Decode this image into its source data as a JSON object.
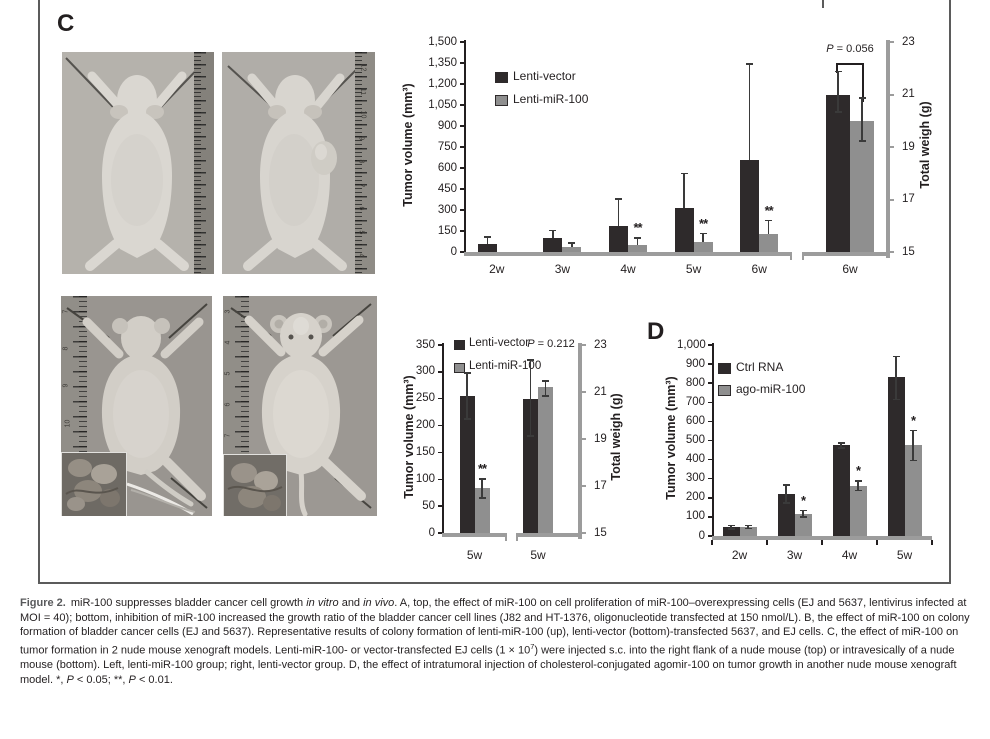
{
  "panels": {
    "c": "C",
    "d": "D"
  },
  "colors": {
    "series_dark": "#2e2a2b",
    "series_gray": "#8f8f8f",
    "axis_black": "#231f20",
    "axis_gray": "#9c9c9c",
    "error_bar": "#3a3a3a",
    "text": "#231f20",
    "caption_label": "#58595b"
  },
  "photos": [
    {
      "position": "top-left",
      "view": "dorsal",
      "ruler_side": "right",
      "ruler_numbers": [],
      "has_inset": false
    },
    {
      "position": "top-right",
      "view": "dorsal",
      "ruler_side": "right",
      "ruler_numbers": [
        "12",
        "11",
        "10",
        "9",
        "8",
        "7",
        "6",
        "5",
        "4"
      ],
      "has_inset": false
    },
    {
      "position": "bottom-left",
      "view": "ventral",
      "ruler_side": "left",
      "ruler_numbers": [
        "7",
        "8",
        "9",
        "10",
        "11",
        "12"
      ],
      "has_inset": true
    },
    {
      "position": "bottom-right",
      "view": "ventral",
      "ruler_side": "left",
      "ruler_numbers": [
        "3",
        "4",
        "5",
        "6",
        "7",
        "8",
        "9"
      ],
      "has_inset": true
    }
  ],
  "chart_data": [
    {
      "type": "bar",
      "ylabel_left": "Tumor volume (mm³)",
      "ylabel_right": "Total weigh (g)",
      "y_left_max": 1500,
      "y_left_ticks": [
        "1,500",
        "1,350",
        "1,200",
        "1,050",
        "900",
        "750",
        "600",
        "450",
        "300",
        "150",
        "0"
      ],
      "y_right_range": [
        15,
        23
      ],
      "y_right_ticks": [
        "23",
        "21",
        "19",
        "17",
        "15"
      ],
      "categories": [
        "2w",
        "3w",
        "4w",
        "5w",
        "6w"
      ],
      "weight_category": "6w",
      "legend": [
        "Lenti-vector",
        "Lenti-miR-100"
      ],
      "p_label": "P",
      "p_rest": " = 0.056",
      "series": [
        {
          "name": "Lenti-vector",
          "color": "#2e2a2b",
          "values": [
            60,
            100,
            185,
            315,
            660
          ],
          "err_hi": [
            113,
            160,
            385,
            565,
            1350
          ],
          "err_lo": null,
          "sig": null
        },
        {
          "name": "Lenti-miR-100",
          "color": "#8f8f8f",
          "values": [
            0,
            38,
            50,
            70,
            130
          ],
          "err_hi": [
            0,
            68,
            105,
            138,
            232
          ],
          "err_lo": null,
          "sig": [
            "",
            "",
            "**",
            "**",
            "**"
          ]
        }
      ],
      "weight_series": [
        {
          "name": "Lenti-vector",
          "value": 21.0,
          "err_hi": 21.9,
          "err_lo": 20.3
        },
        {
          "name": "Lenti-miR-100",
          "value": 20.0,
          "err_hi": 20.9,
          "err_lo": 19.2
        }
      ]
    },
    {
      "type": "bar",
      "ylabel_left": "Tumor volume (mm³)",
      "ylabel_right": "Total weigh (g)",
      "y_left_max": 350,
      "y_left_ticks": [
        "350",
        "300",
        "250",
        "200",
        "150",
        "100",
        "50",
        "0"
      ],
      "y_right_range": [
        15,
        23
      ],
      "y_right_ticks": [
        "23",
        "21",
        "19",
        "17",
        "15"
      ],
      "categories": [
        "5w"
      ],
      "weight_category": "5w",
      "legend": [
        "Lenti-vector",
        "Lenti-miR-100"
      ],
      "p_label": "P",
      "p_rest": " = 0.212",
      "series": [
        {
          "name": "Lenti-vector",
          "color": "#2e2a2b",
          "values": [
            255
          ],
          "err_hi": [
            299
          ],
          "err_lo": [
            211
          ],
          "sig": null
        },
        {
          "name": "Lenti-miR-100",
          "color": "#8f8f8f",
          "values": [
            83
          ],
          "err_hi": [
            102
          ],
          "err_lo": [
            64
          ],
          "sig": [
            "**"
          ]
        }
      ],
      "weight_series": [
        {
          "name": "Lenti-vector",
          "value": 20.7,
          "err_hi": 22.4,
          "err_lo": 19.1
        },
        {
          "name": "Lenti-miR-100",
          "value": 21.2,
          "err_hi": 21.5,
          "err_lo": 20.8
        }
      ]
    },
    {
      "type": "bar",
      "ylabel_left": "Tumor volume (mm³)",
      "y_left_max": 1000,
      "y_left_ticks": [
        "1,000",
        "900",
        "800",
        "700",
        "600",
        "500",
        "400",
        "300",
        "200",
        "100",
        "0"
      ],
      "categories": [
        "2w",
        "3w",
        "4w",
        "5w"
      ],
      "legend": [
        "Ctrl RNA",
        "ago-miR-100"
      ],
      "series": [
        {
          "name": "Ctrl RNA",
          "color": "#2e2a2b",
          "values": [
            45,
            220,
            475,
            830
          ],
          "err_hi": [
            60,
            270,
            492,
            945
          ],
          "err_lo": [
            32,
            170,
            458,
            712
          ],
          "sig": null
        },
        {
          "name": "ago-miR-100",
          "color": "#8f8f8f",
          "values": [
            48,
            115,
            262,
            478
          ],
          "err_hi": [
            60,
            137,
            291,
            557
          ],
          "err_lo": [
            36,
            95,
            234,
            392
          ],
          "sig": [
            "",
            "*",
            "*",
            "*"
          ]
        }
      ]
    }
  ],
  "caption": {
    "label": "Figure 2.",
    "seg_intro": "miR-100 suppresses bladder cancer cell growth ",
    "italic1": "in vitro",
    "seg_and": " and ",
    "italic2": "in vivo",
    "seg_body1": ". A, top, the effect of miR-100 on cell proliferation of miR-100–overexpressing cells (EJ and 5637, lentivirus infected at MOI = 40); bottom, inhibition of miR-100 increased the growth ratio of the bladder cancer cell lines (J82 and HT-1376, oligonucleotide transfected at 150 nmol/L). B, the effect of miR-100 on colony formation of bladder cancer cells (EJ and 5637). Representative results of colony formation of lenti-miR-100 (up), lenti-vector (bottom)-transfected 5637, and EJ cells. C, the effect of miR-100 on tumor formation in 2 nude mouse xenograft models. Lenti-miR-100- or vector-transfected EJ cells (1 × 10",
    "superscript": "7",
    "seg_body2": ") were injected s.c. into the right flank of a nude mouse (top) or intravesically of a nude mouse (bottom). Left, lenti-miR-100 group; right, lenti-vector group. D, the effect of intratumoral injection of cholesterol-conjugated agomir-100 on tumor growth in another nude mouse xenograft model. *, ",
    "p1_italic": "P",
    "seg_p1": " < 0.05; **, ",
    "p2_italic": "P",
    "seg_p2": " < 0.01."
  }
}
